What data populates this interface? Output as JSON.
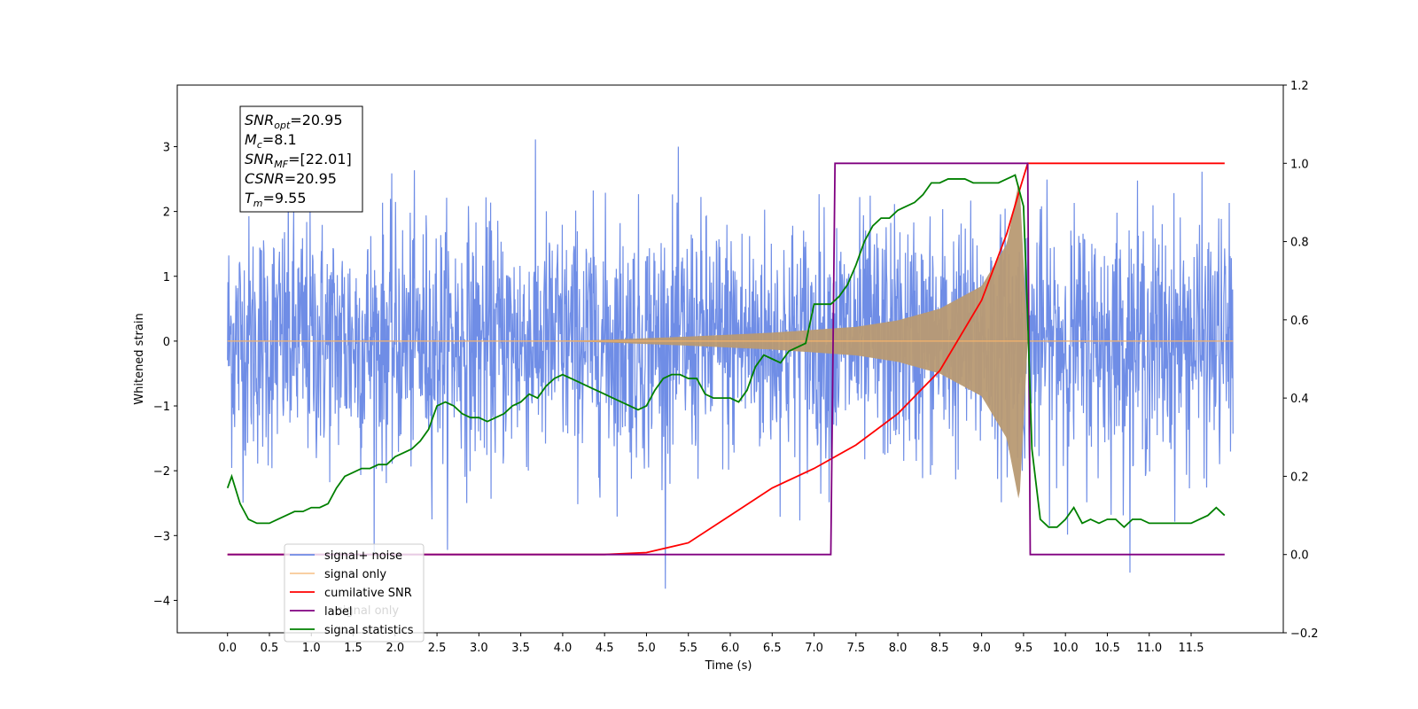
{
  "chart_data": {
    "type": "line",
    "xlabel": "Time (s)",
    "ylabel": "Whitened strain",
    "xlim": [
      -0.6,
      12.6
    ],
    "ylim": [
      -4.5,
      3.95
    ],
    "y2lim": [
      -0.2,
      1.2
    ],
    "x_ticks": [
      "0.0",
      "0.5",
      "1.0",
      "1.5",
      "2.0",
      "2.5",
      "3.0",
      "3.5",
      "4.0",
      "4.5",
      "5.0",
      "5.5",
      "6.0",
      "6.5",
      "7.0",
      "7.5",
      "8.0",
      "8.5",
      "9.0",
      "9.5",
      "10.0",
      "10.5",
      "11.0",
      "11.5"
    ],
    "y_ticks": [
      "3",
      "2",
      "1",
      "0",
      "−1",
      "−2",
      "−3",
      "−4"
    ],
    "y2_ticks": [
      "1.2",
      "1.0",
      "0.8",
      "0.6",
      "0.4",
      "0.2",
      "0.0",
      "−0.2"
    ],
    "legend_position": "lower left",
    "colors": {
      "signal_noise": "#6f8de6",
      "signal_only": "#f5b26a",
      "signal_fill": "#b89a73",
      "cumulative_snr": "#ff0000",
      "label": "#800080",
      "signal_statistics": "#008000"
    },
    "series": [
      {
        "name": "signal+ noise",
        "axis": "left",
        "x_range": [
          0.0,
          12.0
        ],
        "description_stats": {
          "typical_amplitude": 1.5,
          "max": 3.55,
          "min": -4.1
        }
      },
      {
        "name": "signal only",
        "axis": "left",
        "x_range": [
          0.0,
          12.0
        ],
        "merger_time": 9.55,
        "envelope": {
          "x": [
            4.5,
            5.5,
            6.5,
            7.5,
            8.0,
            8.5,
            9.0,
            9.3,
            9.45,
            9.55
          ],
          "y": [
            0.02,
            0.07,
            0.13,
            0.22,
            0.32,
            0.5,
            0.85,
            1.5,
            2.5,
            0.0
          ]
        }
      },
      {
        "name": "cumilative SNR",
        "axis": "right",
        "x": [
          0.0,
          4.5,
          5.0,
          5.5,
          6.0,
          6.5,
          7.0,
          7.5,
          8.0,
          8.5,
          9.0,
          9.3,
          9.45,
          9.55,
          9.56,
          11.9
        ],
        "y": [
          0.0,
          0.0,
          0.005,
          0.03,
          0.1,
          0.17,
          0.22,
          0.28,
          0.36,
          0.47,
          0.65,
          0.82,
          0.93,
          1.0,
          1.0,
          1.0
        ]
      },
      {
        "name": "label",
        "axis": "right",
        "x": [
          0.0,
          7.2,
          7.25,
          9.55,
          9.58,
          11.9
        ],
        "y": [
          0.0,
          0.0,
          1.0,
          1.0,
          0.0,
          0.0
        ]
      },
      {
        "name": "signal statistics",
        "axis": "right",
        "x": [
          0.0,
          0.05,
          0.15,
          0.25,
          0.35,
          0.5,
          0.6,
          0.7,
          0.8,
          0.9,
          1.0,
          1.1,
          1.2,
          1.3,
          1.4,
          1.5,
          1.6,
          1.7,
          1.8,
          1.9,
          2.0,
          2.1,
          2.2,
          2.3,
          2.4,
          2.5,
          2.6,
          2.7,
          2.8,
          2.9,
          3.0,
          3.1,
          3.2,
          3.3,
          3.4,
          3.5,
          3.6,
          3.7,
          3.8,
          3.9,
          4.0,
          4.1,
          4.2,
          4.3,
          4.4,
          4.5,
          4.6,
          4.7,
          4.8,
          4.9,
          5.0,
          5.1,
          5.2,
          5.3,
          5.4,
          5.5,
          5.6,
          5.7,
          5.8,
          5.9,
          6.0,
          6.1,
          6.2,
          6.3,
          6.4,
          6.5,
          6.6,
          6.7,
          6.8,
          6.9,
          7.0,
          7.1,
          7.2,
          7.3,
          7.4,
          7.5,
          7.6,
          7.7,
          7.8,
          7.9,
          8.0,
          8.1,
          8.2,
          8.3,
          8.4,
          8.5,
          8.6,
          8.7,
          8.8,
          8.9,
          9.0,
          9.1,
          9.2,
          9.3,
          9.4,
          9.5,
          9.55,
          9.6,
          9.7,
          9.8,
          9.9,
          10.0,
          10.1,
          10.2,
          10.3,
          10.4,
          10.5,
          10.6,
          10.7,
          10.8,
          10.9,
          11.0,
          11.1,
          11.2,
          11.3,
          11.4,
          11.5,
          11.6,
          11.7,
          11.8,
          11.9
        ],
        "y": [
          0.17,
          0.2,
          0.13,
          0.09,
          0.08,
          0.08,
          0.09,
          0.1,
          0.11,
          0.11,
          0.12,
          0.12,
          0.13,
          0.17,
          0.2,
          0.21,
          0.22,
          0.22,
          0.23,
          0.23,
          0.25,
          0.26,
          0.27,
          0.29,
          0.32,
          0.38,
          0.39,
          0.38,
          0.36,
          0.35,
          0.35,
          0.34,
          0.35,
          0.36,
          0.38,
          0.39,
          0.41,
          0.4,
          0.43,
          0.45,
          0.46,
          0.45,
          0.44,
          0.43,
          0.42,
          0.41,
          0.4,
          0.39,
          0.38,
          0.37,
          0.38,
          0.42,
          0.45,
          0.46,
          0.46,
          0.45,
          0.45,
          0.41,
          0.4,
          0.4,
          0.4,
          0.39,
          0.42,
          0.48,
          0.51,
          0.5,
          0.49,
          0.52,
          0.53,
          0.54,
          0.64,
          0.64,
          0.64,
          0.66,
          0.69,
          0.74,
          0.8,
          0.84,
          0.86,
          0.86,
          0.88,
          0.89,
          0.9,
          0.92,
          0.95,
          0.95,
          0.96,
          0.96,
          0.96,
          0.95,
          0.95,
          0.95,
          0.95,
          0.96,
          0.97,
          0.89,
          0.6,
          0.27,
          0.09,
          0.07,
          0.07,
          0.09,
          0.12,
          0.08,
          0.09,
          0.08,
          0.09,
          0.09,
          0.07,
          0.09,
          0.09,
          0.08,
          0.08,
          0.08,
          0.08,
          0.08,
          0.08,
          0.09,
          0.1,
          0.12,
          0.1
        ]
      }
    ],
    "legend": [
      "signal+ noise",
      "signal only",
      "cumilative SNR",
      "label",
      "signal statistics"
    ],
    "legend_obscured_text": "signal only",
    "stats_box": [
      {
        "base": "SNR",
        "sub": "opt",
        "value": "=20.95"
      },
      {
        "base": "M",
        "sub": "c",
        "value": "=8.1"
      },
      {
        "base": "SNR",
        "sub": "MF",
        "value": "=[22.01]"
      },
      {
        "base": "CSNR",
        "sub": "",
        "value": "=20.95"
      },
      {
        "base": "T",
        "sub": "m",
        "value": "=9.55"
      }
    ]
  }
}
